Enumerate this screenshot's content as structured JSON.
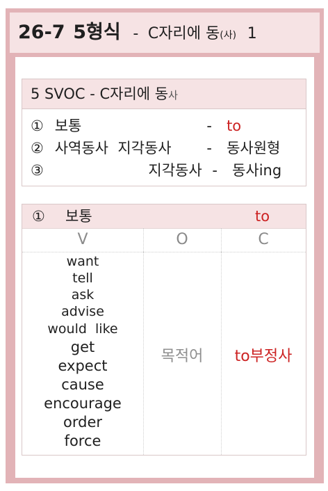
{
  "header": {
    "code": "26-7",
    "form": "5형식",
    "dash": "-",
    "subtitle_main": "C자리에 동",
    "subtitle_small": "(사)",
    "subtitle_num": "1"
  },
  "svoc": {
    "title_main": "5 SVOC - C자리에 동",
    "title_small": "사",
    "rules": [
      {
        "num": "①",
        "left": "보통",
        "dash": "-",
        "right": "to"
      },
      {
        "num": "②",
        "left": "사역동사  지각동사",
        "dash": "-",
        "right": "동사원형"
      },
      {
        "num": "③",
        "left": "지각동사",
        "dash": "-",
        "right": "동사ing"
      }
    ]
  },
  "table": {
    "header_num": "①",
    "header_label": "보통",
    "header_to": "to",
    "columns": [
      "V",
      "O",
      "C"
    ],
    "verbs": [
      "want",
      "tell",
      "ask",
      "advise",
      "would  like",
      "get",
      "expect",
      "cause",
      "encourage",
      "order",
      "force"
    ],
    "object": "목적어",
    "complement": "to부정사"
  },
  "colors": {
    "frame": "#e2b3b7",
    "header_bg": "#f6e3e4",
    "accent_red": "#cc2222"
  }
}
